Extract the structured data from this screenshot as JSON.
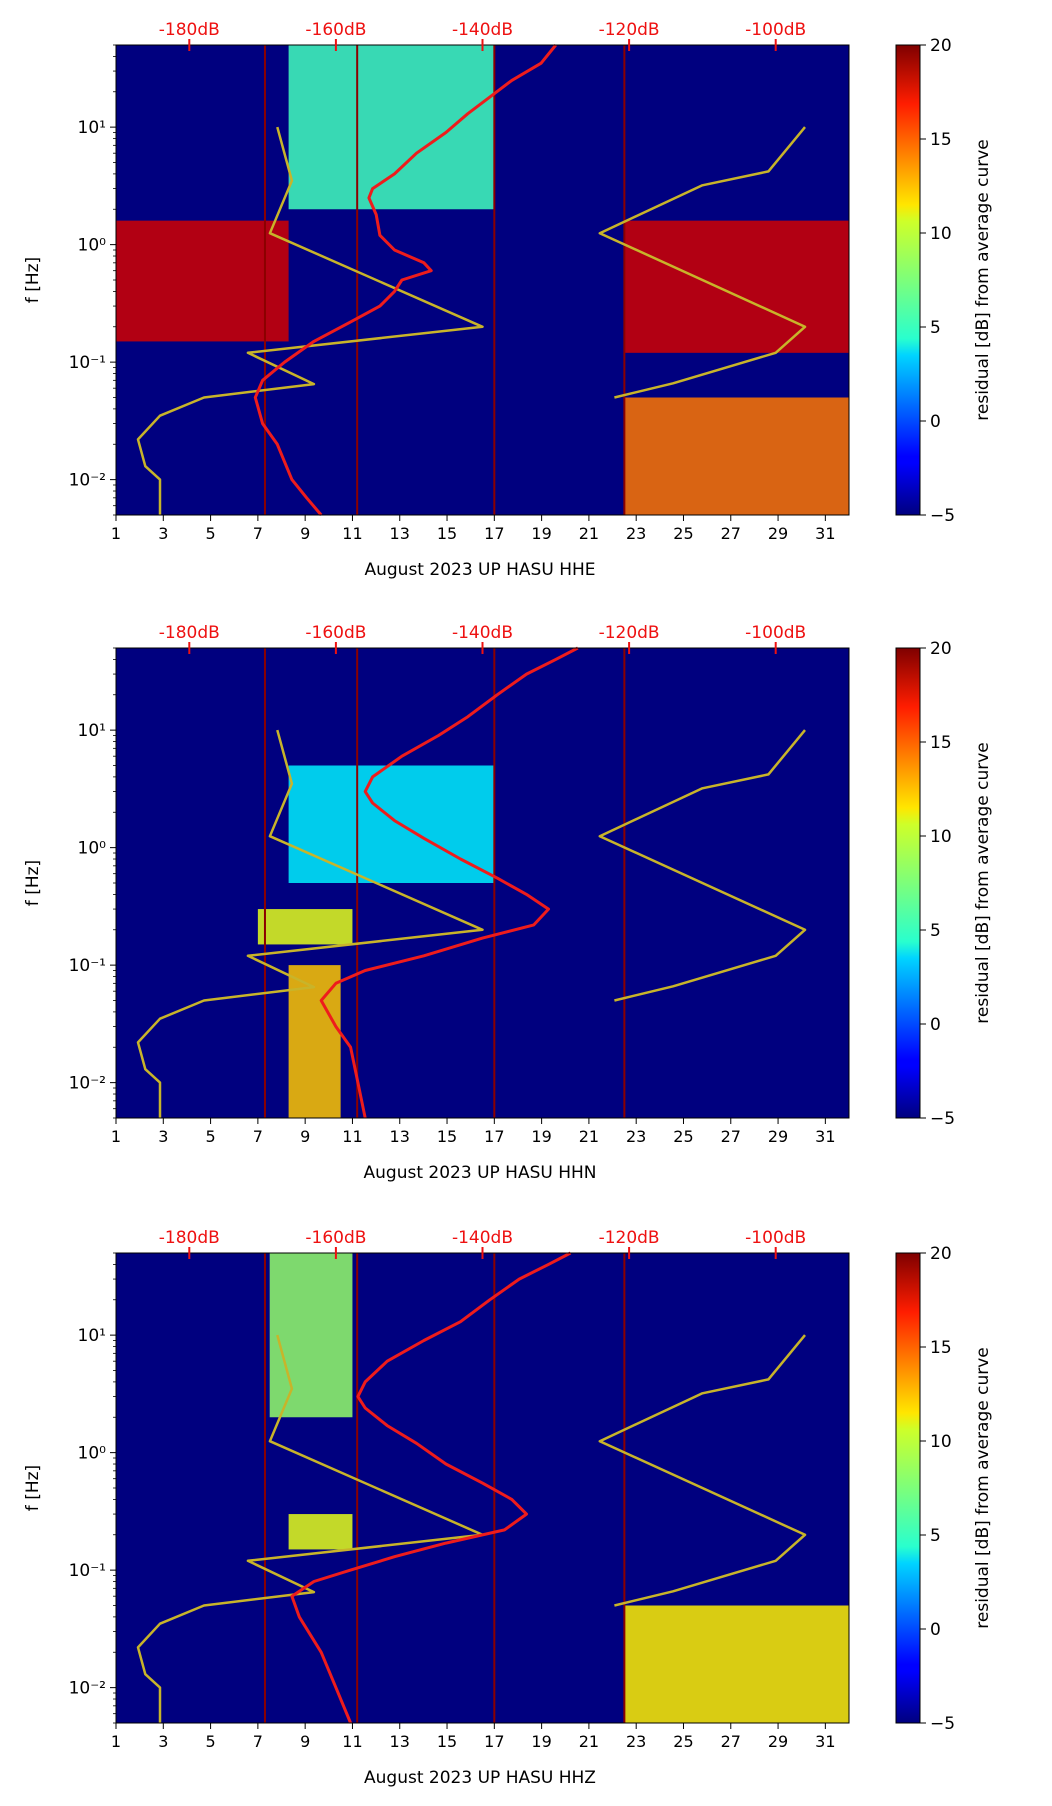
{
  "chart_data": [
    {
      "type": "heatmap",
      "channel": "HHE",
      "xlabel": "August 2023 UP HASU  HHE",
      "ylabel": "f [Hz]",
      "colorbar_label": "residual [dB] from average curve",
      "x_ticks": [
        "1",
        "3",
        "5",
        "7",
        "9",
        "11",
        "13",
        "15",
        "17",
        "19",
        "21",
        "23",
        "25",
        "27",
        "29",
        "31"
      ],
      "y_ticks": [
        "10⁻²",
        "10⁻¹",
        "10⁰",
        "10¹"
      ],
      "db_ticks": [
        "-180dB",
        "-160dB",
        "-140dB",
        "-120dB",
        "-100dB"
      ],
      "colorbar_ticks": [
        "20",
        "15",
        "10",
        "5",
        "0",
        "−5"
      ],
      "xlim": [
        1,
        32
      ],
      "ylim_hz": [
        0.005,
        50
      ],
      "clim": [
        -5,
        20
      ],
      "red_curve": [
        [
          -130,
          50
        ],
        [
          -132,
          35
        ],
        [
          -136,
          25
        ],
        [
          -139,
          18
        ],
        [
          -142,
          13
        ],
        [
          -145,
          9
        ],
        [
          -149,
          6
        ],
        [
          -152,
          4
        ],
        [
          -155,
          3
        ],
        [
          -155.5,
          2.5
        ],
        [
          -154.5,
          1.8
        ],
        [
          -154,
          1.2
        ],
        [
          -152,
          0.9
        ],
        [
          -148,
          0.7
        ],
        [
          -147,
          0.6
        ],
        [
          -151,
          0.5
        ],
        [
          -152,
          0.4
        ],
        [
          -154,
          0.3
        ],
        [
          -158,
          0.22
        ],
        [
          -163,
          0.15
        ],
        [
          -167,
          0.1
        ],
        [
          -170,
          0.07
        ],
        [
          -171,
          0.05
        ],
        [
          -170,
          0.03
        ],
        [
          -168,
          0.02
        ],
        [
          -166,
          0.01
        ],
        [
          -164,
          0.007
        ],
        [
          -162,
          0.005
        ]
      ],
      "peterson_low": [
        [
          -168,
          10
        ],
        [
          -166,
          3.5
        ],
        [
          -169,
          1.25
        ],
        [
          -140,
          0.2
        ],
        [
          -172,
          0.12
        ],
        [
          -163,
          0.065
        ],
        [
          -178,
          0.05
        ],
        [
          -184,
          0.035
        ],
        [
          -187,
          0.022
        ],
        [
          -186,
          0.013
        ],
        [
          -184,
          0.01
        ],
        [
          -184,
          0.005
        ]
      ],
      "peterson_high": [
        [
          -122,
          0.05
        ],
        [
          -114,
          0.066
        ],
        [
          -100,
          0.12
        ],
        [
          -96,
          0.2
        ],
        [
          -124,
          1.25
        ],
        [
          -110,
          3.2
        ],
        [
          -101,
          4.2
        ],
        [
          -96,
          10
        ]
      ],
      "noise_bands": [
        {
          "day0": 1,
          "day1": 8.3,
          "f0": 0.15,
          "f1": 1.6,
          "level": 18
        },
        {
          "day0": 22.5,
          "day1": 32,
          "f0": 0.12,
          "f1": 1.6,
          "level": 18
        },
        {
          "day0": 22.5,
          "day1": 32,
          "f0": 0.005,
          "f1": 0.05,
          "level": 14
        },
        {
          "day0": 8.3,
          "day1": 17,
          "f0": 2,
          "f1": 50,
          "level": 6
        }
      ]
    },
    {
      "type": "heatmap",
      "channel": "HHN",
      "xlabel": "August 2023 UP HASU  HHN",
      "ylabel": "f [Hz]",
      "colorbar_label": "residual [dB] from average curve",
      "x_ticks": [
        "1",
        "3",
        "5",
        "7",
        "9",
        "11",
        "13",
        "15",
        "17",
        "19",
        "21",
        "23",
        "25",
        "27",
        "29",
        "31"
      ],
      "y_ticks": [
        "10⁻²",
        "10⁻¹",
        "10⁰",
        "10¹"
      ],
      "db_ticks": [
        "-180dB",
        "-160dB",
        "-140dB",
        "-120dB",
        "-100dB"
      ],
      "colorbar_ticks": [
        "20",
        "15",
        "10",
        "5",
        "0",
        "−5"
      ],
      "xlim": [
        1,
        32
      ],
      "ylim_hz": [
        0.005,
        50
      ],
      "clim": [
        -5,
        20
      ],
      "red_curve": [
        [
          -127,
          50
        ],
        [
          -130,
          40
        ],
        [
          -134,
          30
        ],
        [
          -138,
          20
        ],
        [
          -142,
          13
        ],
        [
          -146,
          9
        ],
        [
          -151,
          6
        ],
        [
          -155,
          4
        ],
        [
          -156,
          3
        ],
        [
          -155,
          2.4
        ],
        [
          -152,
          1.7
        ],
        [
          -148,
          1.2
        ],
        [
          -143,
          0.8
        ],
        [
          -138,
          0.55
        ],
        [
          -134,
          0.4
        ],
        [
          -131,
          0.3
        ],
        [
          -133,
          0.22
        ],
        [
          -140,
          0.17
        ],
        [
          -148,
          0.12
        ],
        [
          -156,
          0.09
        ],
        [
          -160,
          0.07
        ],
        [
          -162,
          0.05
        ],
        [
          -160,
          0.03
        ],
        [
          -158,
          0.02
        ],
        [
          -157,
          0.01
        ],
        [
          -156,
          0.005
        ]
      ],
      "peterson_low": [
        [
          -168,
          10
        ],
        [
          -166,
          3.5
        ],
        [
          -169,
          1.25
        ],
        [
          -140,
          0.2
        ],
        [
          -172,
          0.12
        ],
        [
          -163,
          0.065
        ],
        [
          -178,
          0.05
        ],
        [
          -184,
          0.035
        ],
        [
          -187,
          0.022
        ],
        [
          -186,
          0.013
        ],
        [
          -184,
          0.01
        ],
        [
          -184,
          0.005
        ]
      ],
      "peterson_high": [
        [
          -122,
          0.05
        ],
        [
          -114,
          0.066
        ],
        [
          -100,
          0.12
        ],
        [
          -96,
          0.2
        ],
        [
          -124,
          1.25
        ],
        [
          -110,
          3.2
        ],
        [
          -101,
          4.2
        ],
        [
          -96,
          10
        ]
      ],
      "noise_bands": [
        {
          "day0": 7,
          "day1": 11,
          "f0": 0.15,
          "f1": 0.3,
          "level": 10
        },
        {
          "day0": 8.3,
          "day1": 10.5,
          "f0": 0.005,
          "f1": 0.1,
          "level": 12
        },
        {
          "day0": 8.3,
          "day1": 17,
          "f0": 0.5,
          "f1": 5,
          "level": 4
        }
      ]
    },
    {
      "type": "heatmap",
      "channel": "HHZ",
      "xlabel": "August 2023 UP HASU  HHZ",
      "ylabel": "f [Hz]",
      "colorbar_label": "residual [dB] from average curve",
      "x_ticks": [
        "1",
        "3",
        "5",
        "7",
        "9",
        "11",
        "13",
        "15",
        "17",
        "19",
        "21",
        "23",
        "25",
        "27",
        "29",
        "31"
      ],
      "y_ticks": [
        "10⁻²",
        "10⁻¹",
        "10⁰",
        "10¹"
      ],
      "db_ticks": [
        "-180dB",
        "-160dB",
        "-140dB",
        "-120dB",
        "-100dB"
      ],
      "colorbar_ticks": [
        "20",
        "15",
        "10",
        "5",
        "0",
        "−5"
      ],
      "xlim": [
        1,
        32
      ],
      "ylim_hz": [
        0.005,
        50
      ],
      "clim": [
        -5,
        20
      ],
      "red_curve": [
        [
          -128,
          50
        ],
        [
          -131,
          40
        ],
        [
          -135,
          30
        ],
        [
          -139,
          20
        ],
        [
          -143,
          13
        ],
        [
          -148,
          9
        ],
        [
          -153,
          6
        ],
        [
          -156,
          4
        ],
        [
          -157,
          3
        ],
        [
          -156,
          2.4
        ],
        [
          -153,
          1.7
        ],
        [
          -149,
          1.2
        ],
        [
          -145,
          0.8
        ],
        [
          -140,
          0.55
        ],
        [
          -136,
          0.4
        ],
        [
          -134,
          0.3
        ],
        [
          -137,
          0.22
        ],
        [
          -145,
          0.17
        ],
        [
          -152,
          0.13
        ],
        [
          -158,
          0.1
        ],
        [
          -163,
          0.08
        ],
        [
          -166,
          0.06
        ],
        [
          -165,
          0.04
        ],
        [
          -162,
          0.02
        ],
        [
          -160,
          0.01
        ],
        [
          -158,
          0.005
        ]
      ],
      "peterson_low": [
        [
          -168,
          10
        ],
        [
          -166,
          3.5
        ],
        [
          -169,
          1.25
        ],
        [
          -140,
          0.2
        ],
        [
          -172,
          0.12
        ],
        [
          -163,
          0.065
        ],
        [
          -178,
          0.05
        ],
        [
          -184,
          0.035
        ],
        [
          -187,
          0.022
        ],
        [
          -186,
          0.013
        ],
        [
          -184,
          0.01
        ],
        [
          -184,
          0.005
        ]
      ],
      "peterson_high": [
        [
          -122,
          0.05
        ],
        [
          -114,
          0.066
        ],
        [
          -100,
          0.12
        ],
        [
          -96,
          0.2
        ],
        [
          -124,
          1.25
        ],
        [
          -110,
          3.2
        ],
        [
          -101,
          4.2
        ],
        [
          -96,
          10
        ]
      ],
      "noise_bands": [
        {
          "day0": 7.5,
          "day1": 11,
          "f0": 2,
          "f1": 50,
          "level": 8
        },
        {
          "day0": 8.3,
          "day1": 11,
          "f0": 0.15,
          "f1": 0.3,
          "level": 10
        },
        {
          "day0": 22.5,
          "day1": 32,
          "f0": 0.005,
          "f1": 0.05,
          "level": 11
        }
      ]
    }
  ],
  "db_axis_range": [
    -190,
    -90
  ],
  "colors": {
    "red_curve": "#ee1c1c",
    "peterson": "#c8b42a",
    "db_label": "#ee1111",
    "event_line": "#8b0000"
  }
}
